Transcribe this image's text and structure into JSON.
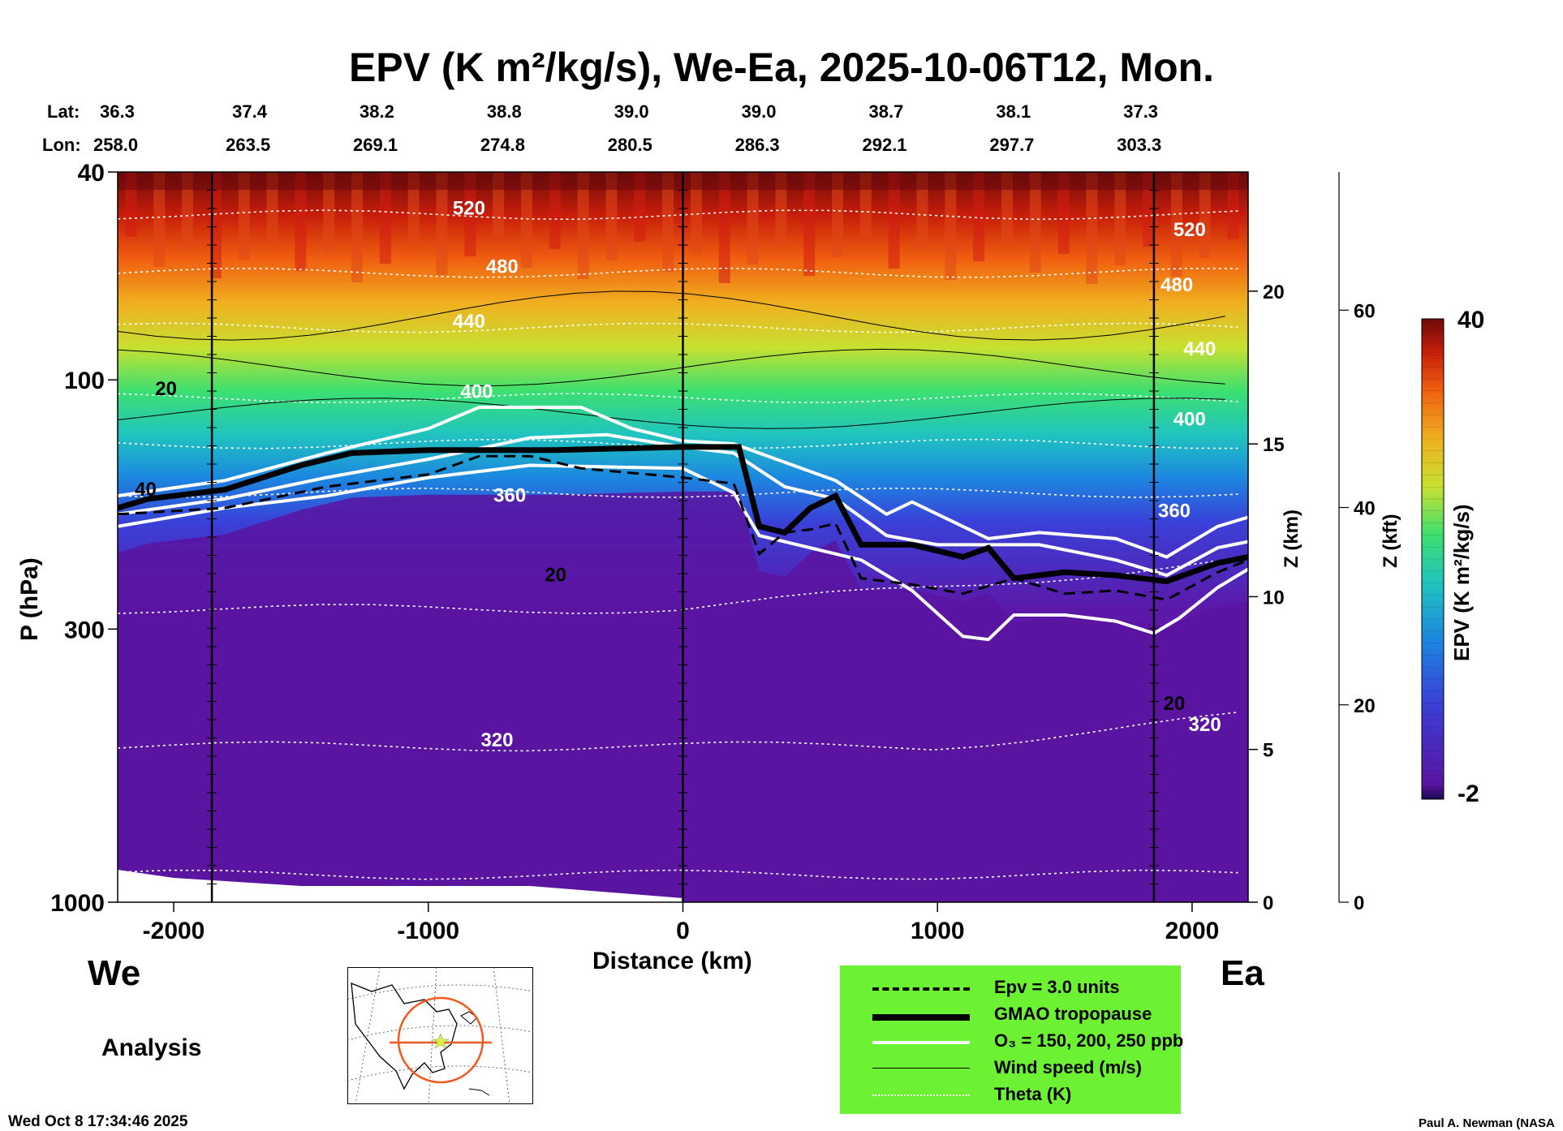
{
  "header": {
    "title": "EPV (K m²/kg/s), We-Ea, 2025-10-06T12, Mon.",
    "lat_label": "Lat:",
    "lon_label": "Lon:",
    "lat": [
      "36.3",
      "37.4",
      "38.2",
      "38.8",
      "39.0",
      "39.0",
      "38.7",
      "38.1",
      "37.3"
    ],
    "lon": [
      "258.0",
      "263.5",
      "269.1",
      "274.8",
      "280.5",
      "286.3",
      "292.1",
      "297.7",
      "303.3"
    ]
  },
  "side_labels": {
    "west": "We",
    "east": "Ea",
    "analysis": "Analysis"
  },
  "footer": {
    "timestamp": "Wed Oct  8 17:34:46 2025",
    "credit": "Paul A. Newman (NASA"
  },
  "legend": {
    "items": [
      {
        "label": "Epv = 3.0 units",
        "style": "dashed"
      },
      {
        "label": "GMAO tropopause",
        "style": "thick"
      },
      {
        "label": "O₃ = 150, 200, 250 ppb",
        "style": "white"
      },
      {
        "label": "Wind speed (m/s)",
        "style": "thin"
      },
      {
        "label": "Theta (K)",
        "style": "dotted"
      }
    ]
  },
  "colorbar": {
    "max": "40",
    "min": "-2",
    "label": "EPV (K m²/kg/s)",
    "range": [
      -2,
      40
    ]
  },
  "colors": {
    "background": "#ffffff",
    "legend_bg": "#6cf233",
    "low_pv": "#5a14a0",
    "high_pv": "#6e0a0a",
    "map_marker": "#f05a1e"
  },
  "chart_data": {
    "type": "heatmap",
    "title": "EPV (K m²/kg/s), We-Ea, 2025-10-06T12, Mon.",
    "xlabel": "Distance (km)",
    "ylabel": "P (hPa)",
    "z_km_label": "Z (km)",
    "z_kft_label": "Z (kft)",
    "x_ticks": [
      "-2000",
      "-1000",
      "0",
      "1000",
      "2000"
    ],
    "x_tick_values": [
      -2000,
      -1000,
      0,
      1000,
      2000
    ],
    "xlim": [
      -2220,
      2220
    ],
    "y_ticks": [
      "40",
      "100",
      "300",
      "1000"
    ],
    "y_tick_values": [
      40,
      100,
      300,
      1000
    ],
    "ylim": [
      1000,
      40
    ],
    "z_km_ticks": [
      "0",
      "5",
      "10",
      "15",
      "20"
    ],
    "z_km_values": [
      0,
      5,
      10,
      15,
      20
    ],
    "z_km_range": [
      0,
      23.9
    ],
    "z_kft_ticks": [
      "0",
      "20",
      "40",
      "60"
    ],
    "z_kft_values": [
      0,
      20,
      40,
      60
    ],
    "z_kft_range": [
      0,
      74
    ],
    "theta_labels": [
      {
        "text": "520",
        "x": -840,
        "z": 22.5
      },
      {
        "text": "480",
        "x": -710,
        "z": 20.6
      },
      {
        "text": "440",
        "x": -840,
        "z": 18.8
      },
      {
        "text": "400",
        "x": -810,
        "z": 16.5
      },
      {
        "text": "360",
        "x": -680,
        "z": 13.1
      },
      {
        "text": "320",
        "x": -730,
        "z": 5.1
      },
      {
        "text": "520",
        "x": 1990,
        "z": 21.8
      },
      {
        "text": "480",
        "x": 1940,
        "z": 20.0
      },
      {
        "text": "440",
        "x": 2030,
        "z": 17.9
      },
      {
        "text": "400",
        "x": 1990,
        "z": 15.6
      },
      {
        "text": "360",
        "x": 1930,
        "z": 12.6
      },
      {
        "text": "320",
        "x": 2050,
        "z": 5.6
      }
    ],
    "wind_labels": [
      {
        "text": "20",
        "x": -2030,
        "z": 16.6
      },
      {
        "text": "40",
        "x": -2110,
        "z": 13.3
      },
      {
        "text": "20",
        "x": -500,
        "z": 10.5
      },
      {
        "text": "20",
        "x": 1930,
        "z": 6.3
      }
    ],
    "tropopause_z": [
      [
        -2220,
        12.9
      ],
      [
        -2100,
        13.2
      ],
      [
        -1800,
        13.5
      ],
      [
        -1500,
        14.3
      ],
      [
        -1300,
        14.7
      ],
      [
        -1000,
        14.8
      ],
      [
        -500,
        14.8
      ],
      [
        0,
        14.9
      ],
      [
        220,
        14.9
      ],
      [
        300,
        12.3
      ],
      [
        400,
        12.1
      ],
      [
        500,
        12.9
      ],
      [
        600,
        13.3
      ],
      [
        700,
        11.7
      ],
      [
        900,
        11.7
      ],
      [
        1100,
        11.3
      ],
      [
        1200,
        11.6
      ],
      [
        1300,
        10.6
      ],
      [
        1500,
        10.8
      ],
      [
        1700,
        10.7
      ],
      [
        1900,
        10.5
      ],
      [
        2100,
        11.1
      ],
      [
        2220,
        11.3
      ]
    ],
    "o3_low_z": [
      [
        -2220,
        12.3
      ],
      [
        -1800,
        12.9
      ],
      [
        -1400,
        13.3
      ],
      [
        -1000,
        13.9
      ],
      [
        -600,
        14.3
      ],
      [
        0,
        14.2
      ],
      [
        200,
        13.4
      ],
      [
        300,
        12.0
      ],
      [
        500,
        11.6
      ],
      [
        700,
        11.2
      ],
      [
        900,
        10.2
      ],
      [
        1100,
        8.7
      ],
      [
        1200,
        8.6
      ],
      [
        1300,
        9.4
      ],
      [
        1500,
        9.4
      ],
      [
        1700,
        9.2
      ],
      [
        1850,
        8.8
      ],
      [
        1950,
        9.3
      ],
      [
        2100,
        10.3
      ],
      [
        2220,
        10.9
      ]
    ],
    "o3_mid_z": [
      [
        -2220,
        12.7
      ],
      [
        -1800,
        13.2
      ],
      [
        -1400,
        13.9
      ],
      [
        -1000,
        14.5
      ],
      [
        -600,
        15.2
      ],
      [
        -300,
        15.3
      ],
      [
        0,
        14.9
      ],
      [
        200,
        14.7
      ],
      [
        400,
        13.6
      ],
      [
        600,
        13.2
      ],
      [
        800,
        12.0
      ],
      [
        1000,
        11.7
      ],
      [
        1200,
        11.7
      ],
      [
        1400,
        11.7
      ],
      [
        1700,
        11.2
      ],
      [
        1900,
        10.7
      ],
      [
        2100,
        11.6
      ],
      [
        2220,
        11.8
      ]
    ],
    "o3_high_z": [
      [
        -2220,
        13.3
      ],
      [
        -1800,
        13.8
      ],
      [
        -1400,
        14.7
      ],
      [
        -1000,
        15.5
      ],
      [
        -800,
        16.2
      ],
      [
        -600,
        16.2
      ],
      [
        -400,
        16.2
      ],
      [
        -200,
        15.5
      ],
      [
        0,
        15.1
      ],
      [
        200,
        15.0
      ],
      [
        400,
        14.4
      ],
      [
        600,
        13.8
      ],
      [
        800,
        12.7
      ],
      [
        900,
        13.1
      ],
      [
        1000,
        12.7
      ],
      [
        1200,
        11.9
      ],
      [
        1400,
        12.1
      ],
      [
        1700,
        11.9
      ],
      [
        1900,
        11.3
      ],
      [
        2100,
        12.3
      ],
      [
        2220,
        12.6
      ]
    ],
    "epv3_z": [
      [
        -2220,
        12.7
      ],
      [
        -1800,
        12.9
      ],
      [
        -1400,
        13.6
      ],
      [
        -1000,
        14.0
      ],
      [
        -800,
        14.6
      ],
      [
        -600,
        14.6
      ],
      [
        -400,
        14.2
      ],
      [
        0,
        13.9
      ],
      [
        200,
        13.7
      ],
      [
        300,
        11.4
      ],
      [
        400,
        12.1
      ],
      [
        500,
        12.2
      ],
      [
        600,
        12.4
      ],
      [
        700,
        10.6
      ],
      [
        900,
        10.4
      ],
      [
        1100,
        10.1
      ],
      [
        1300,
        10.6
      ],
      [
        1500,
        10.1
      ],
      [
        1700,
        10.2
      ],
      [
        1900,
        9.9
      ],
      [
        2100,
        10.8
      ],
      [
        2220,
        11.2
      ]
    ]
  }
}
